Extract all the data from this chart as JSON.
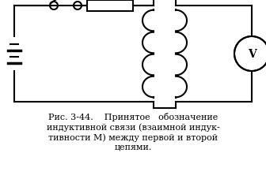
{
  "bg_color": "#ffffff",
  "line_color": "#000000",
  "fig_width": 3.36,
  "fig_height": 2.28,
  "dpi": 100,
  "caption_line1": "Рис. 3-44.    Принятое   обозначение",
  "caption_line2": "индуктивной связи (взаимной индук-",
  "caption_line3": "тивности Μ) между первой и второй",
  "caption_line4": "цепями.",
  "M_label": "M",
  "font_size_caption": 8.0
}
